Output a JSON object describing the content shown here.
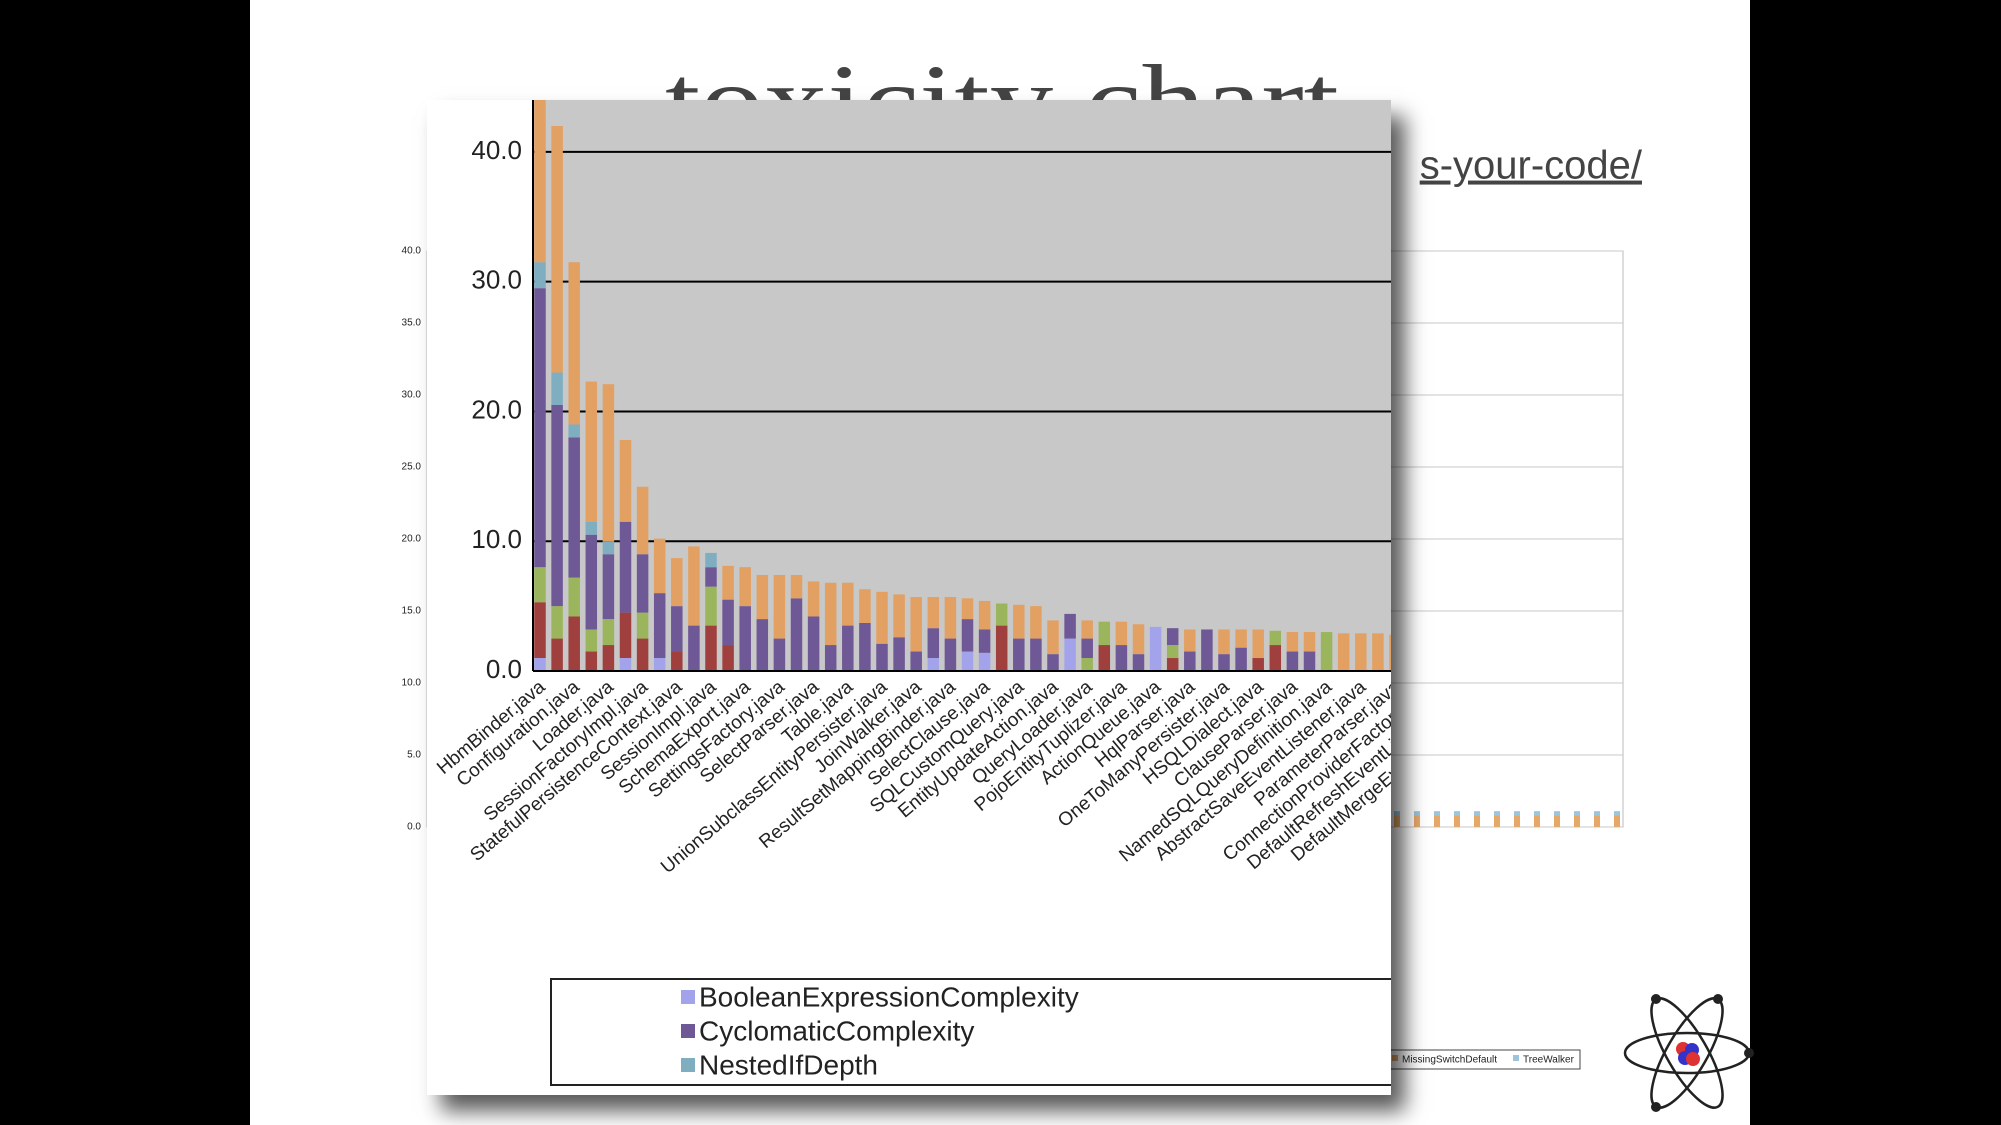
{
  "slide": {
    "title": "toxicity chart",
    "url": "s-your-code/"
  },
  "chart_data": [
    {
      "type": "bar",
      "stacked": true,
      "grid": true,
      "categories": [
        "HbmBinder.java",
        null,
        "Configuration.java",
        null,
        "Loader.java",
        null,
        "SessionFactoryImpl.java",
        null,
        "StatefulPersistenceContext.java",
        null,
        "SessionImpl.java",
        null,
        "SchemaExport.java",
        null,
        "SettingsFactory.java",
        null,
        "SelectParser.java",
        null,
        "Table.java",
        null,
        "UnionSubclassEntityPersister.java",
        null,
        "JoinWalker.java",
        null,
        "ResultSetMappingBinder.java",
        null,
        "SelectClause.java",
        null,
        "SQLCustomQuery.java",
        null,
        "EntityUpdateAction.java",
        null,
        "QueryLoader.java",
        null,
        "PojoEntityTuplizer.java",
        null,
        "ActionQueue.java",
        null,
        "HqlParser.java",
        null,
        "OneToManyPersister.java",
        null,
        "HSQLDialect.java",
        null,
        "ClauseParser.java",
        null,
        "NamedSQLQueryDefinition.java",
        null,
        "AbstractSaveEventListener.java",
        null,
        "ParameterParser.java",
        null,
        "ConnectionProviderFactory.java",
        null,
        "DefaultRefreshEventListener.java",
        null,
        "DefaultMergeEventListener.java",
        null
      ],
      "ylim": [
        0,
        44
      ],
      "yticks": [
        {
          "value": 0,
          "label": "0.0"
        },
        {
          "value": 10,
          "label": "10.0"
        },
        {
          "value": 20,
          "label": "20.0"
        },
        {
          "value": 30,
          "label": "30.0"
        },
        {
          "value": 40,
          "label": "40.0"
        }
      ],
      "series": [
        {
          "name": "BooleanExpressionComplexity",
          "color": "#a3a3ec",
          "values": [
            1,
            0,
            0,
            0,
            0,
            1,
            0,
            1,
            0,
            0,
            0,
            0,
            0,
            0,
            0,
            0,
            0,
            0,
            0,
            0,
            0,
            0,
            0,
            1,
            0,
            1.5,
            1.4,
            0,
            0,
            0,
            0,
            2.5,
            0,
            0,
            0,
            0,
            3.4,
            0,
            0,
            0,
            0,
            0,
            0,
            0,
            0,
            0,
            0,
            0,
            0,
            0,
            0,
            0,
            0,
            0,
            0,
            0,
            0,
            0
          ]
        },
        {
          "color": "#a0403e",
          "values": [
            4.3,
            2.5,
            4.2,
            1.5,
            2,
            3.5,
            2.5,
            0,
            1.5,
            0,
            3.5,
            2,
            0,
            0,
            0,
            0,
            0,
            0,
            0,
            0,
            0,
            0,
            0,
            0,
            0,
            0,
            0,
            3.5,
            0,
            0,
            0,
            0,
            0,
            2,
            0,
            0,
            0,
            1,
            0,
            0,
            0,
            0,
            1,
            2,
            0,
            0,
            0,
            0,
            0,
            0,
            0,
            0,
            0,
            0,
            0,
            0,
            0,
            0
          ]
        },
        {
          "color": "#9bb55c",
          "values": [
            2.7,
            2.5,
            3,
            1.7,
            2,
            0,
            2,
            0,
            0,
            0,
            3,
            0,
            0,
            0,
            0,
            0,
            0,
            0,
            0,
            0,
            0,
            0,
            0,
            0,
            0,
            0,
            0,
            1.7,
            0,
            0,
            0,
            0,
            1,
            1.8,
            0,
            0,
            0,
            1,
            0,
            0,
            0,
            0,
            0,
            1.1,
            0,
            0,
            3,
            0,
            0,
            0,
            0,
            0,
            0,
            0,
            0,
            0,
            0,
            0
          ]
        },
        {
          "name": "CyclomaticComplexity",
          "color": "#6f5896",
          "values": [
            21.5,
            15.5,
            10.8,
            7.3,
            5,
            7,
            4.5,
            5,
            3.5,
            3.5,
            1.5,
            3.5,
            5,
            4,
            2.5,
            5.6,
            4.2,
            2,
            3.5,
            3.7,
            2.1,
            2.6,
            1.5,
            2.3,
            2.5,
            2.5,
            1.8,
            0,
            2.5,
            2.5,
            1.3,
            1.9,
            1.5,
            0,
            2,
            1.3,
            0,
            1.3,
            1.5,
            3.2,
            1.3,
            1.8,
            0,
            0,
            1.5,
            1.5,
            0,
            0,
            0,
            0,
            0,
            0,
            0,
            0,
            0,
            0,
            0,
            0
          ]
        },
        {
          "name": "NestedIfDepth",
          "color": "#7eaec0",
          "values": [
            2,
            2.5,
            1,
            1,
            1,
            0,
            0,
            0,
            0,
            0,
            1.1,
            0,
            0,
            0,
            0,
            0,
            0,
            0,
            0,
            0,
            0,
            0,
            0,
            0,
            0,
            0,
            0,
            0,
            0,
            0,
            0,
            0,
            0,
            0,
            0,
            0,
            0,
            0,
            0,
            0,
            0,
            0,
            0,
            0,
            0,
            0,
            0,
            0,
            0,
            0,
            0,
            0,
            0,
            0,
            0,
            0,
            0,
            0
          ]
        },
        {
          "color": "#e2a062",
          "values": [
            15.5,
            19,
            12.5,
            10.8,
            12.1,
            6.3,
            5.2,
            4.2,
            3.7,
            6.1,
            0,
            2.6,
            3,
            3.4,
            4.9,
            1.8,
            2.7,
            4.8,
            3.3,
            2.6,
            4,
            3.3,
            4.2,
            2.4,
            3.2,
            1.6,
            2.2,
            0,
            2.6,
            2.5,
            2.6,
            0,
            1.4,
            0,
            1.8,
            2.3,
            0,
            0,
            1.7,
            0,
            1.9,
            1.4,
            2.2,
            0,
            1.5,
            1.5,
            0,
            2.9,
            2.9,
            2.9,
            2.8,
            2.8,
            2.8,
            2.8,
            2.8,
            2.8,
            2.8,
            2.8
          ]
        }
      ]
    },
    {
      "type": "bar",
      "stacked": true,
      "grid": true,
      "categories": [
        null,
        null,
        null,
        null,
        null,
        null,
        null,
        null,
        null,
        null,
        null,
        null,
        null,
        null,
        null,
        null,
        null,
        null,
        null,
        null,
        null,
        null,
        null,
        null,
        null,
        null,
        null,
        null,
        null,
        null,
        null,
        null,
        null,
        null,
        null,
        null,
        null,
        null,
        null,
        null,
        null,
        null,
        null,
        null,
        null,
        null,
        null,
        null,
        null,
        null,
        null,
        null,
        null,
        null,
        null,
        null,
        null,
        null,
        null,
        null
      ],
      "ylim": [
        0,
        40
      ],
      "yticks": [
        {
          "value": 0,
          "label": "0.0"
        },
        {
          "value": 5,
          "label": "5.0"
        },
        {
          "value": 10,
          "label": "10.0"
        },
        {
          "value": 15,
          "label": "15.0"
        },
        {
          "value": 20,
          "label": "20.0"
        },
        {
          "value": 25,
          "label": "25.0"
        },
        {
          "value": 30,
          "label": "30.0"
        },
        {
          "value": 35,
          "label": "35.0"
        },
        {
          "value": 40,
          "label": "40.0"
        }
      ],
      "series": [
        {
          "name": "MissingSwitchDefault",
          "color": "#e6a868",
          "values": [
            0.8,
            0.8,
            0.8,
            0.8,
            0.8,
            0.8,
            0.8,
            0.8,
            0.8,
            0.8,
            0.8,
            0.8,
            0.8,
            0.8,
            0.8,
            0.8,
            0.8,
            0.8,
            0.8,
            0.8,
            0.8,
            0.8,
            0.8,
            0.8,
            0.8,
            0.8,
            0.8,
            0.8,
            0.8,
            0.8,
            0.8,
            0.8,
            0.8,
            0.8,
            0.8,
            0.8,
            0.8,
            0.8,
            0.8,
            0.8,
            0.8,
            0.8,
            0.8,
            0.8,
            0.8,
            0.8,
            0.8,
            0.8,
            0.8,
            0.8,
            0.8,
            0.8,
            0.8,
            0.8,
            0.8,
            0.8,
            0.8,
            0.8,
            0.8,
            0.8
          ]
        },
        {
          "name": "TreeWalker",
          "color": "#9cc4dc",
          "values": [
            0.3,
            0.3,
            0.3,
            0.3,
            0.3,
            0.3,
            0.3,
            0.3,
            0.3,
            0.3,
            0.3,
            0.3,
            0.3,
            0.3,
            0.3,
            0.3,
            0.3,
            0.3,
            0.3,
            0.3,
            0.3,
            0.3,
            0.3,
            0.3,
            0.3,
            0.3,
            0.3,
            0.3,
            0.3,
            0.3,
            0.3,
            0.3,
            0.3,
            0.3,
            0.3,
            0.3,
            0.3,
            0.3,
            0.3,
            0.3,
            0.3,
            0.3,
            0.3,
            0.3,
            0.3,
            0.3,
            0.3,
            0.3,
            0.3,
            0.3,
            0.3,
            0.3,
            0.3,
            0.3,
            0.3,
            0.3,
            0.3,
            0.3,
            0.3,
            0.3
          ]
        }
      ]
    }
  ]
}
